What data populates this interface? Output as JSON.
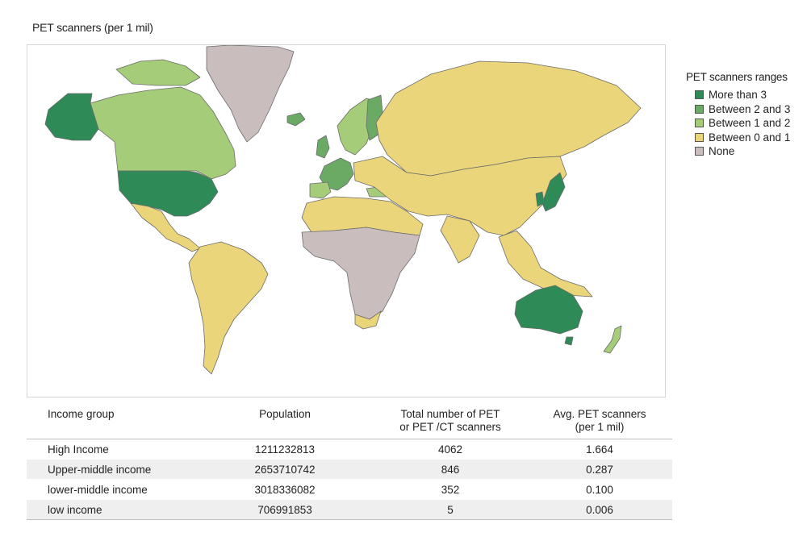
{
  "map": {
    "title": "PET scanners (per 1 mil)"
  },
  "legend": {
    "title": "PET scanners ranges",
    "items": [
      {
        "label": "More than 3",
        "color": "#2e8b57"
      },
      {
        "label": "Between 2 and 3",
        "color": "#6aaa64"
      },
      {
        "label": "Between 1 and 2",
        "color": "#a5cc78"
      },
      {
        "label": "Between 0 and 1",
        "color": "#ead57a"
      },
      {
        "label": "None",
        "color": "#c9bdbd"
      }
    ]
  },
  "table": {
    "headers": [
      "Income group",
      "Population",
      "Total number of PET\nor PET /CT scanners",
      "Avg. PET scanners\n(per 1 mil)"
    ],
    "rows": [
      {
        "group": "High Income",
        "population": "1211232813",
        "total": "4062",
        "avg": "1.664"
      },
      {
        "group": "Upper-middle income",
        "population": "2653710742",
        "total": "846",
        "avg": "0.287"
      },
      {
        "group": "lower-middle income",
        "population": "3018336082",
        "total": "352",
        "avg": "0.100"
      },
      {
        "group": "low income",
        "population": "706991853",
        "total": "5",
        "avg": "0.006"
      }
    ]
  }
}
